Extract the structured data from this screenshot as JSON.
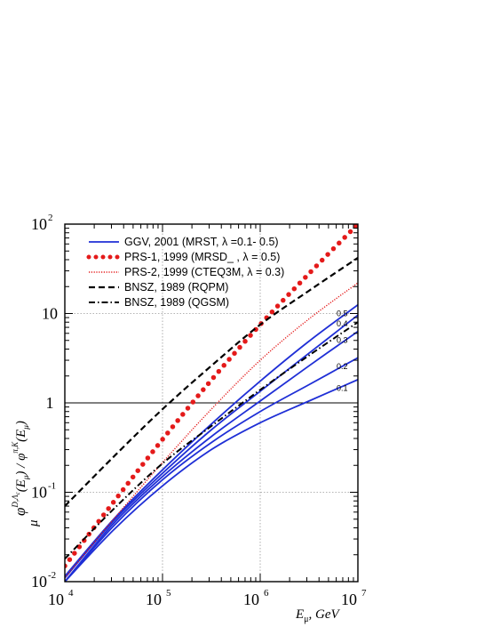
{
  "chart_data": {
    "type": "line",
    "title": "",
    "xlabel": {
      "main": "E",
      "sub": "μ",
      "unit": ",   GeV"
    },
    "ylabel": {
      "phi": "φ",
      "num_sup": "D,Λ",
      "num_sup_sub": "c",
      "num_arg": "(E",
      "num_arg_sub": "μ",
      "slash": ") / φ",
      "den_sup": "π,K",
      "den_arg": "(E",
      "den_arg_sub": "μ",
      "close": ")",
      "phi_sub": "μ"
    },
    "x_scale": "log",
    "y_scale": "log",
    "xlim": [
      10000,
      10000000
    ],
    "ylim": [
      0.01,
      100
    ],
    "x_ticks": [
      {
        "value": 10000,
        "base": "10",
        "exp": "4"
      },
      {
        "value": 100000,
        "base": "10",
        "exp": "5"
      },
      {
        "value": 1000000,
        "base": "10",
        "exp": "6"
      },
      {
        "value": 10000000,
        "base": "10",
        "exp": "7"
      }
    ],
    "y_ticks": [
      {
        "value": 0.01,
        "base": "10",
        "exp": "-2"
      },
      {
        "value": 0.1,
        "base": "10",
        "exp": "-1"
      },
      {
        "value": 1,
        "base": "1",
        "exp": ""
      },
      {
        "value": 10,
        "base": "10",
        "exp": ""
      },
      {
        "value": 100,
        "base": "10",
        "exp": "2"
      }
    ],
    "grid": true,
    "reference_line_y": 1,
    "legend_position": "top-left",
    "legend": [
      {
        "label": "GGV, 2001 (MRST,   λ =0.1- 0.5)",
        "style": "solid",
        "color": "#1f2fd6"
      },
      {
        "label": "PRS-1, 1999 (MRSD_ ,  λ = 0.5)",
        "style": "bigdots",
        "color": "#e41a1a"
      },
      {
        "label": "PRS-2, 1999 (CTEQ3M,   λ = 0.3)",
        "style": "finedots",
        "color": "#e41a1a"
      },
      {
        "label": "BNSZ, 1989 (RQPM)",
        "style": "dashed",
        "color": "#000000"
      },
      {
        "label": "BNSZ, 1989 (QGSM)",
        "style": "dashdot",
        "color": "#000000"
      }
    ],
    "series": [
      {
        "style": "solid",
        "color": "#1f2fd6",
        "label": "0.1",
        "x": [
          10000,
          31623,
          100000,
          316228,
          1000000,
          3162278,
          10000000
        ],
        "y": [
          0.01,
          0.038,
          0.118,
          0.3,
          0.6,
          1.05,
          1.82
        ]
      },
      {
        "style": "solid",
        "color": "#1f2fd6",
        "label": "0.2",
        "x": [
          10000,
          31623,
          100000,
          316228,
          1000000,
          3162278,
          10000000
        ],
        "y": [
          0.01,
          0.042,
          0.138,
          0.36,
          0.8,
          1.6,
          3.2
        ]
      },
      {
        "style": "solid",
        "color": "#1f2fd6",
        "label": "0.3",
        "x": [
          10000,
          31623,
          100000,
          316228,
          1000000,
          3162278,
          10000000
        ],
        "y": [
          0.01,
          0.045,
          0.15,
          0.42,
          1.05,
          2.6,
          6.3
        ]
      },
      {
        "style": "solid",
        "color": "#1f2fd6",
        "label": "0.4",
        "x": [
          10000,
          31623,
          100000,
          316228,
          1000000,
          3162278,
          10000000
        ],
        "y": [
          0.011,
          0.048,
          0.163,
          0.5,
          1.35,
          3.6,
          9.6
        ]
      },
      {
        "style": "solid",
        "color": "#1f2fd6",
        "label": "0.5",
        "x": [
          10000,
          31623,
          100000,
          316228,
          1000000,
          3162278,
          10000000
        ],
        "y": [
          0.0115,
          0.05,
          0.178,
          0.58,
          1.75,
          4.9,
          12.5
        ]
      },
      {
        "style": "bigdots",
        "color": "#e41a1a",
        "x": [
          10000,
          31623,
          100000,
          316228,
          1000000,
          3162278,
          10000000
        ],
        "y": [
          0.015,
          0.078,
          0.39,
          1.8,
          7.5,
          28.0,
          100
        ]
      },
      {
        "style": "finedots",
        "color": "#e41a1a",
        "x": [
          10000,
          31623,
          100000,
          316228,
          1000000,
          3162278,
          10000000
        ],
        "y": [
          0.011,
          0.05,
          0.215,
          0.85,
          3.0,
          8.7,
          22.0
        ]
      },
      {
        "style": "dashed",
        "color": "#000000",
        "x": [
          10000,
          31623,
          100000,
          316228,
          1000000,
          3162278,
          10000000
        ],
        "y": [
          0.07,
          0.25,
          0.85,
          2.6,
          7.5,
          18.0,
          42.0
        ]
      },
      {
        "style": "dashdot",
        "color": "#000000",
        "x": [
          10000,
          31623,
          100000,
          316228,
          1000000,
          3162278,
          10000000
        ],
        "y": [
          0.018,
          0.065,
          0.21,
          0.55,
          1.4,
          3.4,
          8.0
        ]
      }
    ]
  }
}
